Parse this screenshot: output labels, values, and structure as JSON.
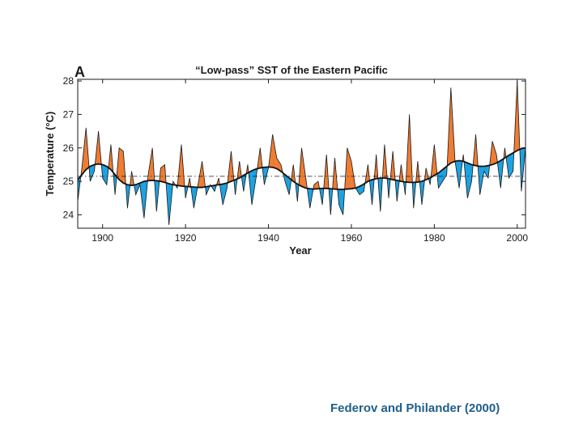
{
  "citation": "Federov and Philander (2000)",
  "colors": {
    "warm": "#ee7a2f",
    "cold": "#1aa0e0",
    "line": "#1a1a1a",
    "citation": "#1f5f8b"
  },
  "chart_data": {
    "type": "area",
    "panel_label": "A",
    "title": "“Low-pass” SST of the Eastern Pacific",
    "xlabel": "Year",
    "ylabel": "Temperature (°C)",
    "xlim": [
      1894,
      2002
    ],
    "ylim": [
      23.6,
      28.05
    ],
    "xticks": [
      1900,
      1920,
      1940,
      1960,
      1980,
      2000
    ],
    "yticks": [
      24,
      25,
      26,
      27,
      28
    ],
    "reference_line": 25.15,
    "series": [
      {
        "name": "Low-pass SST",
        "x": [
          1894,
          1895,
          1896,
          1897,
          1898,
          1899,
          1900,
          1901,
          1902,
          1903,
          1904,
          1905,
          1906,
          1907,
          1908,
          1909,
          1910,
          1911,
          1912,
          1913,
          1914,
          1915,
          1916,
          1917,
          1918,
          1919,
          1920,
          1921,
          1922,
          1923,
          1924,
          1925,
          1926,
          1927,
          1928,
          1929,
          1930,
          1931,
          1932,
          1933,
          1934,
          1935,
          1936,
          1937,
          1938,
          1939,
          1940,
          1941,
          1942,
          1943,
          1944,
          1945,
          1946,
          1947,
          1948,
          1949,
          1950,
          1951,
          1952,
          1953,
          1954,
          1955,
          1956,
          1957,
          1958,
          1959,
          1960,
          1961,
          1962,
          1963,
          1964,
          1965,
          1966,
          1967,
          1968,
          1969,
          1970,
          1971,
          1972,
          1973,
          1974,
          1975,
          1976,
          1977,
          1978,
          1979,
          1980,
          1981,
          1982,
          1983,
          1984,
          1985,
          1986,
          1987,
          1988,
          1989,
          1990,
          1991,
          1992,
          1993,
          1994,
          1995,
          1996,
          1997,
          1998,
          1999,
          2000,
          2001,
          2002
        ],
        "values": [
          24.4,
          25.4,
          26.6,
          25.0,
          25.3,
          26.5,
          25.1,
          24.9,
          26.1,
          24.6,
          26.0,
          25.9,
          24.2,
          25.3,
          24.6,
          24.9,
          23.9,
          25.2,
          26.0,
          24.1,
          25.4,
          25.5,
          23.7,
          25.0,
          24.8,
          26.1,
          24.5,
          25.1,
          24.2,
          24.9,
          25.6,
          24.6,
          24.9,
          24.7,
          25.1,
          24.3,
          24.8,
          25.9,
          24.6,
          25.6,
          24.7,
          25.5,
          24.3,
          25.1,
          26.0,
          24.9,
          25.4,
          26.4,
          25.7,
          25.5,
          25.0,
          24.6,
          25.5,
          24.4,
          26.0,
          25.1,
          24.2,
          24.9,
          25.0,
          24.3,
          25.8,
          24.0,
          25.7,
          24.3,
          24.0,
          26.0,
          25.6,
          24.8,
          24.6,
          24.7,
          25.5,
          24.3,
          25.8,
          24.1,
          26.1,
          24.5,
          25.9,
          24.4,
          25.5,
          24.6,
          27.0,
          24.2,
          25.6,
          24.3,
          25.4,
          24.9,
          26.1,
          24.8,
          25.0,
          25.2,
          27.8,
          25.6,
          24.8,
          25.8,
          24.5,
          25.0,
          26.4,
          24.6,
          25.3,
          25.1,
          26.2,
          25.8,
          24.8,
          26.0,
          25.1,
          25.3,
          28.0,
          24.7,
          26.0
        ],
        "trend": [
          25.05,
          25.2,
          25.35,
          25.45,
          25.5,
          25.52,
          25.5,
          25.45,
          25.35,
          25.2,
          25.05,
          24.95,
          24.9,
          24.88,
          24.9,
          24.95,
          25.0,
          25.02,
          25.03,
          25.02,
          25.0,
          24.97,
          24.93,
          24.9,
          24.88,
          24.86,
          24.85,
          24.84,
          24.83,
          24.82,
          24.82,
          24.84,
          24.86,
          24.88,
          24.9,
          24.92,
          24.95,
          25.0,
          25.05,
          25.1,
          25.18,
          25.25,
          25.32,
          25.37,
          25.4,
          25.42,
          25.43,
          25.42,
          25.38,
          25.3,
          25.2,
          25.1,
          25.0,
          24.92,
          24.85,
          24.8,
          24.78,
          24.77,
          24.78,
          24.79,
          24.79,
          24.78,
          24.77,
          24.76,
          24.76,
          24.77,
          24.78,
          24.8,
          24.85,
          24.92,
          25.0,
          25.05,
          25.08,
          25.1,
          25.1,
          25.08,
          25.05,
          25.03,
          25.0,
          24.98,
          24.97,
          24.97,
          24.98,
          25.0,
          25.05,
          25.1,
          25.18,
          25.25,
          25.35,
          25.45,
          25.55,
          25.6,
          25.62,
          25.6,
          25.55,
          25.5,
          25.47,
          25.45,
          25.45,
          25.47,
          25.5,
          25.55,
          25.62,
          25.7,
          25.78,
          25.85,
          25.92,
          25.98,
          26.0
        ]
      }
    ]
  }
}
